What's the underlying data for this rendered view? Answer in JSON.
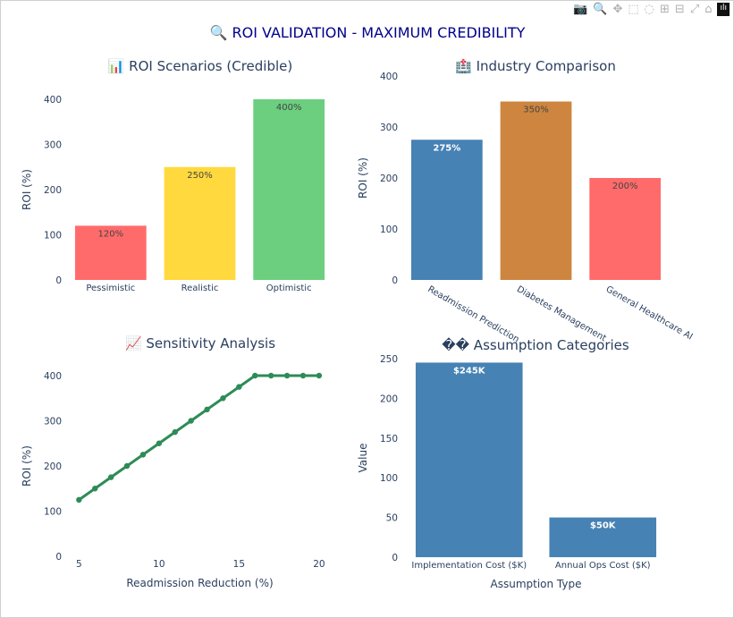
{
  "title": "🔍 ROI VALIDATION - MAXIMUM CREDIBILITY",
  "modebar": [
    {
      "icon": "camera-icon",
      "glyph": "📷"
    },
    {
      "icon": "zoom-icon",
      "glyph": "🔍"
    },
    {
      "icon": "pan-icon",
      "glyph": "✥"
    },
    {
      "icon": "box-select-icon",
      "glyph": "⬚"
    },
    {
      "icon": "lasso-icon",
      "glyph": "◌"
    },
    {
      "icon": "zoom-in-icon",
      "glyph": "⊞"
    },
    {
      "icon": "zoom-out-icon",
      "glyph": "⊟"
    },
    {
      "icon": "autoscale-icon",
      "glyph": "⤢"
    },
    {
      "icon": "home-icon",
      "glyph": "⌂"
    },
    {
      "icon": "plotly-logo-icon",
      "glyph": "ılı"
    }
  ],
  "chart_data": [
    {
      "type": "bar",
      "title": "📊 ROI Scenarios (Credible)",
      "xlabel": "",
      "ylabel": "ROI (%)",
      "ylim": [
        0,
        400
      ],
      "yticks": [
        0,
        100,
        200,
        300,
        400
      ],
      "categories": [
        "Pessimistic",
        "Realistic",
        "Optimistic"
      ],
      "values": [
        120,
        250,
        400
      ],
      "labels": [
        "120%",
        "250%",
        "400%"
      ],
      "colors": [
        "#ff6b6b",
        "#ffd93d",
        "#6bcf7f"
      ],
      "label_color": "#444444"
    },
    {
      "type": "bar",
      "title": "🏥 Industry Comparison",
      "xlabel": "",
      "ylabel": "ROI (%)",
      "ylim": [
        0,
        400
      ],
      "yticks": [
        0,
        100,
        200,
        300,
        400
      ],
      "categories": [
        "Readmission Prediction",
        "Diabetes Management",
        "General Healthcare AI"
      ],
      "values": [
        275,
        350,
        200
      ],
      "labels": [
        "275%",
        "350%",
        "200%"
      ],
      "colors": [
        "#4682b4",
        "#cd853f",
        "#ff6b6b"
      ],
      "label_colors": [
        "#ffffff",
        "#444444",
        "#444444"
      ],
      "tick_rotation": 30
    },
    {
      "type": "line",
      "title": "📈 Sensitivity Analysis",
      "xlabel": "Readmission Reduction (%)",
      "ylabel": "ROI (%)",
      "ylim": [
        0,
        400
      ],
      "yticks": [
        0,
        100,
        200,
        300,
        400
      ],
      "xticks": [
        5,
        10,
        15,
        20
      ],
      "x": [
        5,
        6,
        7,
        8,
        9,
        10,
        11,
        12,
        13,
        14,
        15,
        16,
        17,
        18,
        19,
        20
      ],
      "y": [
        125,
        150,
        175,
        200,
        225,
        250,
        275,
        300,
        325,
        350,
        375,
        400,
        400,
        400,
        400,
        400
      ],
      "color": "#2e8b57"
    },
    {
      "type": "bar",
      "title": "�� Assumption Categories",
      "xlabel": "Assumption Type",
      "ylabel": "Value",
      "ylim": [
        0,
        250
      ],
      "yticks": [
        0,
        50,
        100,
        150,
        200,
        250
      ],
      "categories": [
        "Implementation Cost ($K)",
        "Annual Ops Cost ($K)"
      ],
      "values": [
        245,
        50
      ],
      "labels": [
        "$245K",
        "$50K"
      ],
      "colors": [
        "#4682b4",
        "#4682b4"
      ],
      "label_color": "#ffffff"
    }
  ]
}
